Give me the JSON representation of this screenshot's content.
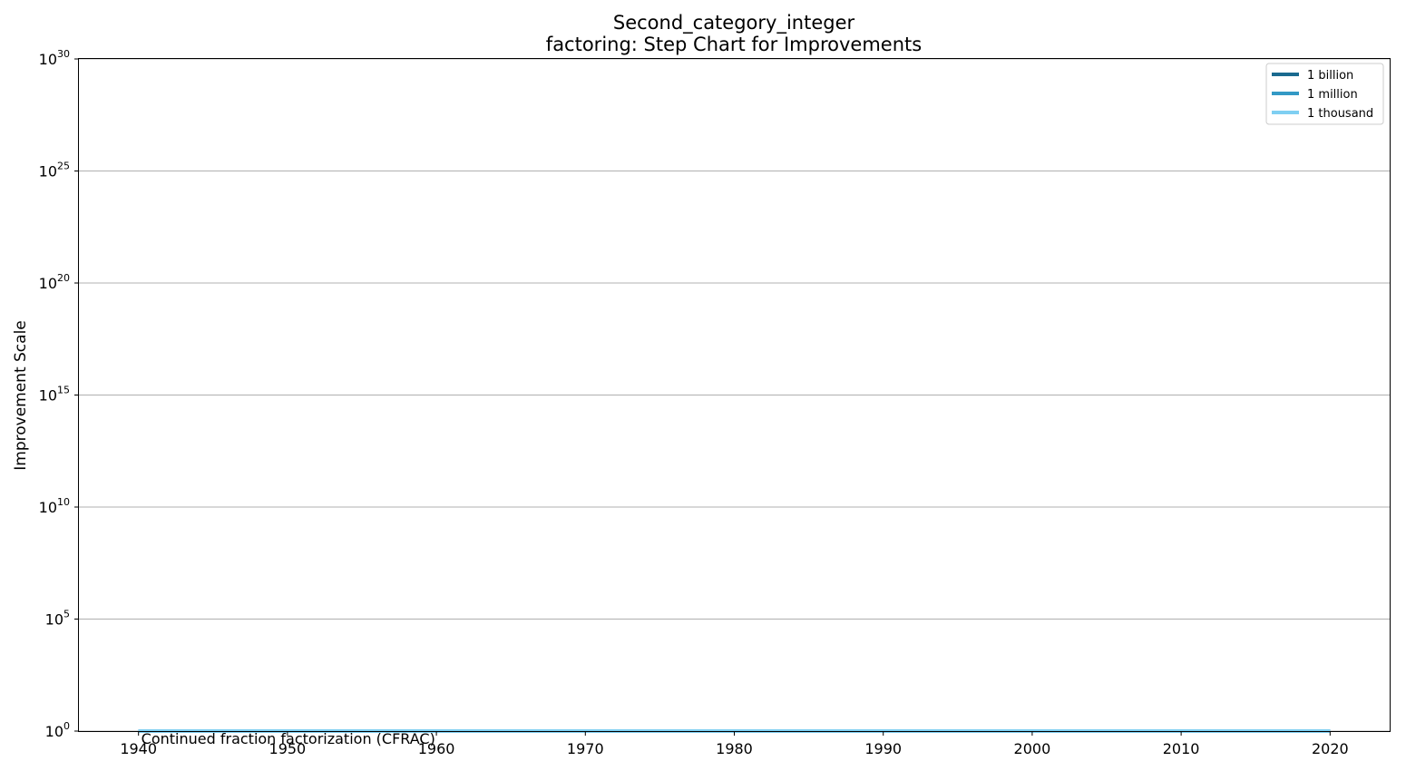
{
  "chart_data": {
    "type": "line",
    "step": true,
    "title_lines": [
      "Second_category_integer",
      "factoring: Step Chart for Improvements"
    ],
    "xlabel": "",
    "ylabel": "Improvement Scale",
    "yscale": "log",
    "xlim": [
      1936,
      2024
    ],
    "ylim": [
      1,
      1e+30
    ],
    "x_ticks": [
      1940,
      1950,
      1960,
      1970,
      1980,
      1990,
      2000,
      2010,
      2020
    ],
    "y_tick_exponents": [
      0,
      5,
      10,
      15,
      20,
      25,
      30
    ],
    "y_tick_base": "10",
    "grid": "y",
    "legend_position": "top-right",
    "series": [
      {
        "name": "1 billion",
        "color": "#1a6a8f",
        "x": [
          1940,
          2020
        ],
        "y": [
          1,
          1
        ]
      },
      {
        "name": "1 million",
        "color": "#3399c5",
        "x": [
          1940,
          2020
        ],
        "y": [
          1,
          1
        ]
      },
      {
        "name": "1 thousand",
        "color": "#7fcff2",
        "x": [
          1940,
          2020
        ],
        "y": [
          1,
          1
        ]
      }
    ],
    "annotations": [
      {
        "text": "Continued fraction factorization (CFRAC)",
        "x": 1940,
        "y": 1
      }
    ]
  }
}
